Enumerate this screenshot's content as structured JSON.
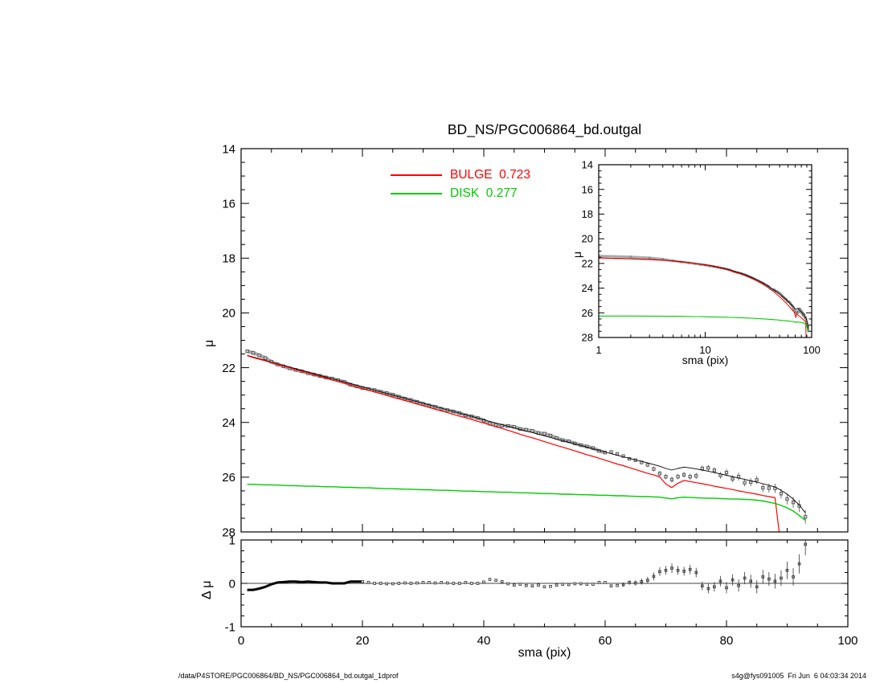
{
  "title": "BD_NS/PGC006864_bd.outgal",
  "legend": {
    "bulge_text": "BULGE  0.723",
    "disk_text": "DISK  0.277",
    "bulge_color": "#ff0000",
    "disk_color": "#00cc00"
  },
  "axes": {
    "main_ylabel": "μ",
    "resid_ylabel": "Δ μ",
    "xlabel": "sma (pix)",
    "inset_ylabel": "μ",
    "inset_xlabel": "sma (pix)"
  },
  "footer": {
    "left": "/data/P4STORE/PGC006864/BD_NS/PGC006864_bd.outgal_1dprof",
    "right": "s4g@fys091005  Fri Jun  6 04:03:34 2014"
  },
  "chart_data": {
    "type": "line",
    "title": "BD_NS/PGC006864_bd.outgal",
    "bulge_fraction": 0.723,
    "disk_fraction": 0.277,
    "series_colors": {
      "observed": "#999999",
      "total": "#000000",
      "bulge": "#ff0000",
      "disk": "#00cc00"
    },
    "panels": [
      {
        "id": "main",
        "ylabel": "μ",
        "xlim": [
          0,
          100
        ],
        "ytop": 14,
        "ybottom": 28,
        "xticks": [
          0,
          20,
          40,
          60,
          80,
          100
        ],
        "yticks": [
          14,
          16,
          18,
          20,
          22,
          24,
          26,
          28
        ]
      },
      {
        "id": "inset",
        "xscale": "log",
        "xlabel": "sma (pix)",
        "ylabel": "μ",
        "xlim": [
          1,
          100
        ],
        "ytop": 14,
        "ybottom": 28,
        "xticks": [
          1,
          10,
          100
        ],
        "yticks": [
          14,
          16,
          18,
          20,
          22,
          24,
          26,
          28
        ]
      },
      {
        "id": "residual",
        "xlabel": "sma (pix)",
        "ylabel": "Δ μ",
        "xlim": [
          0,
          100
        ],
        "ytop": 1,
        "ybottom": -1,
        "xticks": [
          0,
          20,
          40,
          60,
          80,
          100
        ],
        "yticks": [
          -1,
          0,
          1
        ]
      }
    ],
    "sma": [
      1,
      2,
      3,
      4,
      5,
      6,
      7,
      8,
      9,
      10,
      11,
      12,
      13,
      14,
      15,
      16,
      17,
      18,
      19,
      20,
      21,
      22,
      23,
      24,
      25,
      26,
      27,
      28,
      29,
      30,
      31,
      32,
      33,
      34,
      35,
      36,
      37,
      38,
      39,
      40,
      41,
      42,
      43,
      44,
      45,
      46,
      47,
      48,
      49,
      50,
      51,
      52,
      53,
      54,
      55,
      56,
      57,
      58,
      59,
      60,
      61,
      62,
      63,
      64,
      65,
      66,
      67,
      68,
      69,
      70,
      71,
      72,
      73,
      74,
      75,
      76,
      77,
      78,
      79,
      80,
      81,
      82,
      83,
      84,
      85,
      86,
      87,
      88,
      89,
      90,
      91,
      92,
      93
    ],
    "observed_mu": [
      21.4,
      21.46,
      21.55,
      21.65,
      21.78,
      21.88,
      21.95,
      22.02,
      22.08,
      22.13,
      22.2,
      22.25,
      22.3,
      22.36,
      22.4,
      22.46,
      22.52,
      22.62,
      22.68,
      22.74,
      22.78,
      22.82,
      22.88,
      22.93,
      22.99,
      23.06,
      23.13,
      23.18,
      23.25,
      23.32,
      23.38,
      23.43,
      23.5,
      23.55,
      23.6,
      23.66,
      23.74,
      23.78,
      23.84,
      23.93,
      24.05,
      24.09,
      24.12,
      24.13,
      24.16,
      24.24,
      24.27,
      24.31,
      24.39,
      24.41,
      24.48,
      24.57,
      24.65,
      24.69,
      24.77,
      24.83,
      24.88,
      24.94,
      25.04,
      25.1,
      25.08,
      25.15,
      25.23,
      25.33,
      25.38,
      25.46,
      25.55,
      25.7,
      25.87,
      25.98,
      26.09,
      25.98,
      25.91,
      25.98,
      25.95,
      25.68,
      25.66,
      25.75,
      25.93,
      25.83,
      26.06,
      25.98,
      26.2,
      26.18,
      26.1,
      26.39,
      26.4,
      26.41,
      26.6,
      26.8,
      26.92,
      27.05,
      27.45
    ],
    "total_mu": [
      21.55,
      21.61,
      21.67,
      21.73,
      21.8,
      21.86,
      21.92,
      21.98,
      22.04,
      22.1,
      22.16,
      22.22,
      22.28,
      22.34,
      22.4,
      22.46,
      22.52,
      22.58,
      22.64,
      22.7,
      22.76,
      22.82,
      22.88,
      22.94,
      23.0,
      23.06,
      23.12,
      23.18,
      23.24,
      23.3,
      23.36,
      23.42,
      23.48,
      23.54,
      23.6,
      23.66,
      23.72,
      23.78,
      23.84,
      23.9,
      23.96,
      24.02,
      24.08,
      24.14,
      24.2,
      24.26,
      24.32,
      24.37,
      24.43,
      24.49,
      24.55,
      24.61,
      24.67,
      24.72,
      24.78,
      24.84,
      24.9,
      24.96,
      25.02,
      25.08,
      25.14,
      25.2,
      25.26,
      25.31,
      25.37,
      25.42,
      25.48,
      25.54,
      25.6,
      25.68,
      25.74,
      25.68,
      25.63,
      25.66,
      25.7,
      25.74,
      25.78,
      25.83,
      25.88,
      25.93,
      25.98,
      26.03,
      26.08,
      26.13,
      26.18,
      26.24,
      26.3,
      26.36,
      26.48,
      26.62,
      26.8,
      27.02,
      27.3
    ],
    "bulge_mu": [
      21.56,
      21.63,
      21.69,
      21.75,
      21.82,
      21.88,
      21.94,
      22.0,
      22.07,
      22.13,
      22.19,
      22.26,
      22.32,
      22.38,
      22.45,
      22.51,
      22.57,
      22.63,
      22.7,
      22.76,
      22.82,
      22.89,
      22.95,
      23.01,
      23.08,
      23.14,
      23.2,
      23.26,
      23.33,
      23.39,
      23.45,
      23.52,
      23.58,
      23.64,
      23.71,
      23.77,
      23.83,
      23.89,
      23.96,
      24.02,
      24.09,
      24.16,
      24.22,
      24.29,
      24.36,
      24.43,
      24.5,
      24.56,
      24.63,
      24.7,
      24.77,
      24.84,
      24.9,
      24.97,
      25.04,
      25.11,
      25.18,
      25.24,
      25.31,
      25.38,
      25.45,
      25.52,
      25.58,
      25.65,
      25.72,
      25.79,
      25.86,
      25.92,
      25.99,
      26.25,
      26.38,
      26.22,
      26.12,
      26.16,
      26.2,
      26.24,
      26.28,
      26.33,
      26.37,
      26.41,
      26.45,
      26.5,
      26.54,
      26.58,
      26.62,
      26.67,
      26.71,
      26.75,
      28.6,
      null,
      null,
      null,
      null
    ],
    "disk_mu": [
      26.26,
      26.26,
      26.27,
      26.28,
      26.28,
      26.29,
      26.3,
      26.31,
      26.31,
      26.32,
      26.33,
      26.33,
      26.34,
      26.35,
      26.35,
      26.36,
      26.37,
      26.37,
      26.38,
      26.39,
      26.39,
      26.4,
      26.41,
      26.42,
      26.42,
      26.43,
      26.44,
      26.44,
      26.45,
      26.46,
      26.46,
      26.47,
      26.48,
      26.48,
      26.49,
      26.5,
      26.51,
      26.51,
      26.52,
      26.53,
      26.53,
      26.54,
      26.55,
      26.55,
      26.56,
      26.57,
      26.57,
      26.58,
      26.59,
      26.6,
      26.6,
      26.61,
      26.62,
      26.62,
      26.63,
      26.64,
      26.64,
      26.65,
      26.66,
      26.66,
      26.67,
      26.68,
      26.68,
      26.69,
      26.7,
      26.71,
      26.71,
      26.72,
      26.73,
      26.76,
      26.79,
      26.75,
      26.73,
      26.74,
      26.75,
      26.76,
      26.77,
      26.77,
      26.78,
      26.79,
      26.8,
      26.8,
      26.81,
      26.82,
      26.84,
      26.87,
      26.91,
      26.96,
      27.03,
      27.12,
      27.24,
      27.4,
      27.58
    ],
    "residual": [
      -0.15,
      -0.15,
      -0.12,
      -0.08,
      -0.02,
      0.02,
      0.03,
      0.04,
      0.04,
      0.03,
      0.04,
      0.03,
      0.02,
      0.02,
      0.0,
      0.0,
      0.0,
      0.04,
      0.04,
      0.04,
      0.02,
      0.0,
      0.0,
      -0.01,
      -0.01,
      0.0,
      0.01,
      0.0,
      0.01,
      0.02,
      0.02,
      0.01,
      0.02,
      0.01,
      0.0,
      0.0,
      0.02,
      0.0,
      0.0,
      0.03,
      0.09,
      0.07,
      0.04,
      -0.01,
      -0.04,
      -0.02,
      -0.05,
      -0.06,
      -0.04,
      -0.08,
      -0.07,
      -0.04,
      -0.02,
      -0.03,
      -0.01,
      -0.01,
      -0.02,
      -0.02,
      0.02,
      0.02,
      -0.06,
      -0.05,
      -0.03,
      0.02,
      0.01,
      0.04,
      0.07,
      0.16,
      0.27,
      0.3,
      0.35,
      0.3,
      0.28,
      0.32,
      0.25,
      -0.06,
      -0.12,
      -0.08,
      0.05,
      -0.1,
      0.08,
      -0.05,
      0.12,
      0.05,
      -0.08,
      0.15,
      0.1,
      0.05,
      0.12,
      0.3,
      0.15,
      0.45,
      0.9
    ],
    "residual_err": [
      0,
      0,
      0,
      0,
      0,
      0,
      0,
      0,
      0,
      0,
      0,
      0,
      0,
      0,
      0,
      0,
      0,
      0,
      0,
      0,
      0,
      0,
      0,
      0,
      0,
      0,
      0,
      0,
      0,
      0,
      0,
      0,
      0,
      0,
      0,
      0,
      0,
      0,
      0,
      0,
      0,
      0,
      0,
      0,
      0,
      0,
      0,
      0,
      0,
      0,
      0,
      0,
      0,
      0,
      0,
      0,
      0,
      0,
      0,
      0,
      0,
      0,
      0.05,
      0.05,
      0.06,
      0.07,
      0.08,
      0.09,
      0.1,
      0.1,
      0.11,
      0.1,
      0.1,
      0.11,
      0.11,
      0.1,
      0.11,
      0.11,
      0.12,
      0.13,
      0.13,
      0.14,
      0.14,
      0.15,
      0.15,
      0.16,
      0.16,
      0.17,
      0.18,
      0.2,
      0.2,
      0.22,
      0.25
    ]
  }
}
